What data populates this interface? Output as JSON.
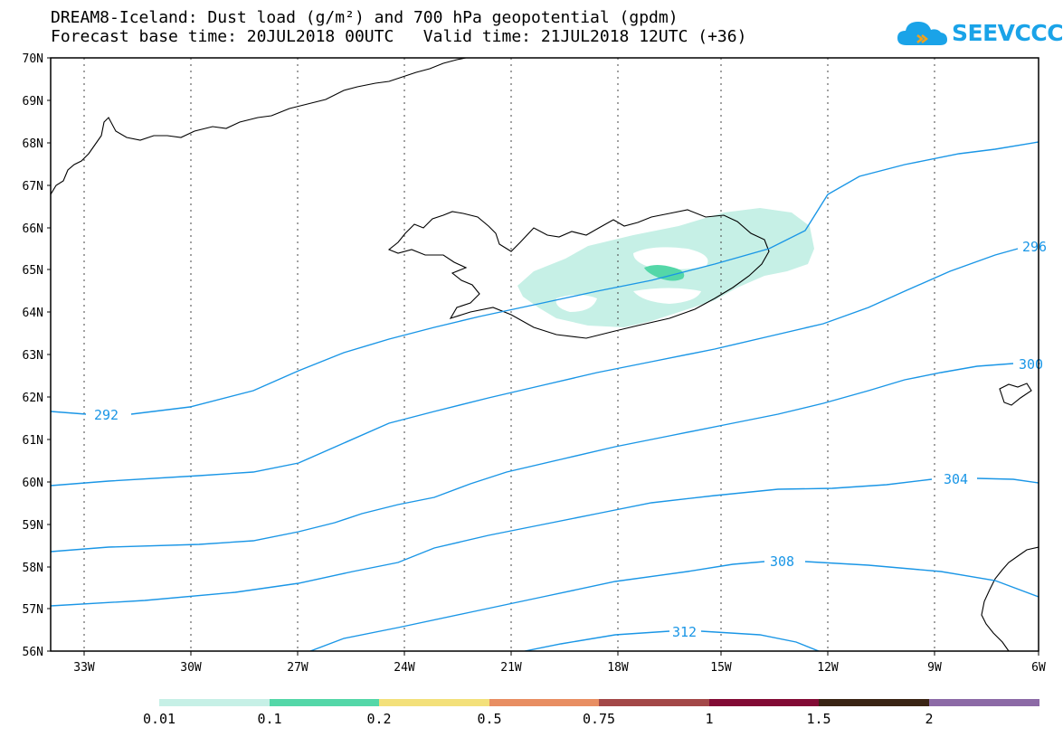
{
  "title_line1": "DREAM8-Iceland: Dust load (g/m²) and 700 hPa geopotential (gpdm)",
  "title_line2": "Forecast base time: 20JUL2018 00UTC   Valid time: 21JUL2018 12UTC (+36)",
  "logo": {
    "text": "SEEVCCC",
    "icon": "cloud-icon",
    "color": "#1aa3e8"
  },
  "map": {
    "lat_labels": [
      "70N",
      "69N",
      "68N",
      "67N",
      "66N",
      "65N",
      "64N",
      "63N",
      "62N",
      "61N",
      "60N",
      "59N",
      "58N",
      "57N",
      "56N"
    ],
    "lon_labels": [
      "33W",
      "30W",
      "27W",
      "24W",
      "21W",
      "18W",
      "15W",
      "12W",
      "9W",
      "6W"
    ],
    "contour_color": "#1a96e6",
    "contour_labels": [
      "292",
      "296",
      "300",
      "304",
      "308",
      "312"
    ],
    "dust_colors": {
      "low": "#c6f0e6",
      "mid": "#54d7a8"
    }
  },
  "colorbar": {
    "labels": [
      "0.01",
      "0.1",
      "0.2",
      "0.5",
      "0.75",
      "1",
      "1.5",
      "2"
    ],
    "colors": [
      "#c6f0e6",
      "#54d7a8",
      "#f3e07a",
      "#e88e62",
      "#a34848",
      "#820b35",
      "#3a2414",
      "#8c6aa6"
    ]
  }
}
